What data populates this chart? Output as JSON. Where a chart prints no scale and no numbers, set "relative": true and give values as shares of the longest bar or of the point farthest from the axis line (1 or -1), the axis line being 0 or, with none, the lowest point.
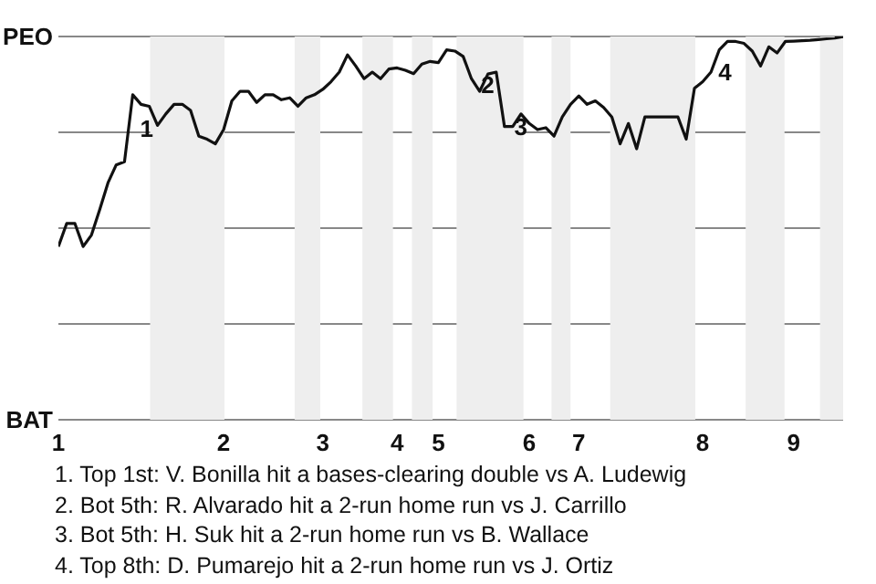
{
  "chart_data": {
    "type": "line",
    "relative": true,
    "categories": [
      "1",
      null,
      null,
      null,
      null,
      null,
      null,
      null,
      null,
      null,
      null,
      null,
      null,
      null,
      null,
      null,
      null,
      null,
      null,
      null,
      "2",
      null,
      null,
      null,
      null,
      null,
      null,
      null,
      null,
      null,
      null,
      null,
      "3",
      null,
      null,
      null,
      null,
      null,
      null,
      null,
      null,
      "4",
      null,
      null,
      null,
      null,
      "5",
      null,
      null,
      null,
      null,
      null,
      null,
      null,
      null,
      null,
      null,
      "6",
      null,
      null,
      null,
      null,
      null,
      "7",
      null,
      null,
      null,
      null,
      null,
      null,
      null,
      null,
      null,
      null,
      null,
      null,
      null,
      null,
      "8",
      null,
      null,
      null,
      null,
      null,
      null,
      null,
      null,
      null,
      null,
      "9",
      null,
      null,
      null,
      null,
      null,
      null
    ],
    "series": [
      {
        "color": "#111111",
        "values": [
          0.452,
          0.512,
          0.512,
          0.452,
          0.482,
          0.548,
          0.618,
          0.665,
          0.673,
          0.848,
          0.823,
          0.818,
          0.768,
          0.798,
          0.823,
          0.823,
          0.807,
          0.74,
          0.732,
          0.72,
          0.757,
          0.832,
          0.857,
          0.857,
          0.828,
          0.848,
          0.848,
          0.835,
          0.84,
          0.818,
          0.84,
          0.848,
          0.862,
          0.882,
          0.907,
          0.952,
          0.923,
          0.89,
          0.907,
          0.89,
          0.915,
          0.918,
          0.912,
          0.903,
          0.928,
          0.935,
          0.932,
          0.965,
          0.962,
          0.948,
          0.89,
          0.857,
          0.902,
          0.907,
          0.765,
          0.765,
          0.798,
          0.773,
          0.757,
          0.762,
          0.74,
          0.79,
          0.823,
          0.845,
          0.823,
          0.832,
          0.815,
          0.79,
          0.72,
          0.773,
          0.707,
          0.79,
          0.79,
          0.79,
          0.79,
          0.79,
          0.732,
          0.865,
          0.882,
          0.907,
          0.965,
          0.987,
          0.987,
          0.982,
          0.962,
          0.923,
          0.973,
          0.957,
          0.987,
          0.988,
          0.989,
          0.99,
          0.992,
          0.994,
          0.996,
          1
        ]
      }
    ],
    "grid": "y",
    "annotations": [
      "PEO",
      "BAT",
      "1",
      "2",
      "3",
      "4",
      "1. Top 1st: V. Bonilla hit a bases-clearing double vs A. Ludewig",
      "2. Bot 5th: R. Alvarado hit a 2-run home run vs J. Carrillo",
      "3. Bot 5th: H. Suk hit a 2-run home run vs B. Wallace",
      "4. Top 8th: D. Pumarejo hit a 2-run home run vs J. Ortiz"
    ],
    "legend": false,
    "marker": "none",
    "line_style": "solid"
  }
}
